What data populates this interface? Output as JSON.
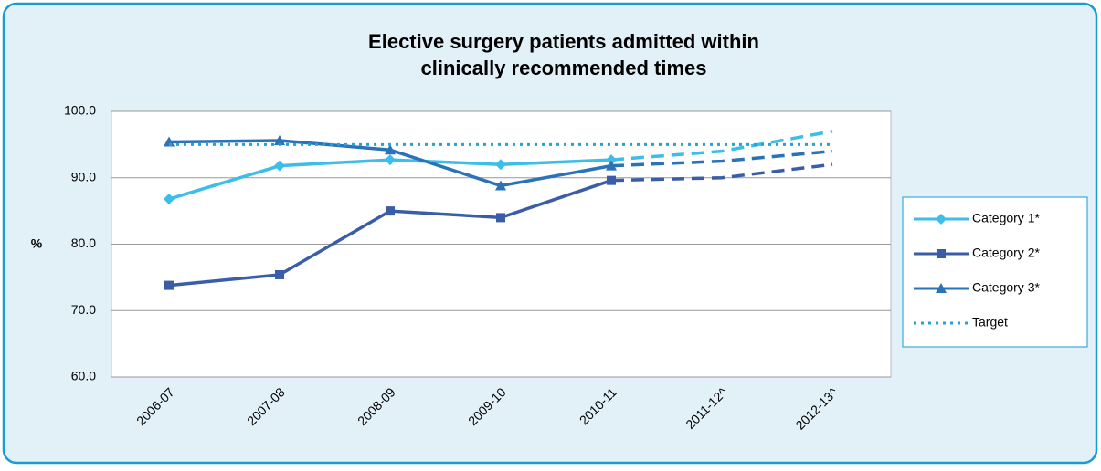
{
  "chart_data": {
    "type": "line",
    "title": [
      "Elective surgery patients admitted within",
      "clinically recommended times"
    ],
    "y_label": "%",
    "categories": [
      "2006-07",
      "2007-08",
      "2008-09",
      "2009-10",
      "2010-11",
      "2011-12^",
      "2012-13^"
    ],
    "projection_from_index": 4,
    "series": [
      {
        "name": "Category 1*",
        "color": "#3dbde9",
        "marker": "diamond",
        "line": "solid",
        "values": [
          86.8,
          91.8,
          92.7,
          92.0,
          92.7,
          94.0,
          97.0
        ]
      },
      {
        "name": "Category 2*",
        "color": "#3a5da8",
        "marker": "square",
        "line": "solid",
        "values": [
          73.8,
          75.4,
          85.0,
          84.0,
          89.6,
          90.0,
          92.0
        ]
      },
      {
        "name": "Category 3*",
        "color": "#2a73b8",
        "marker": "triangle",
        "line": "solid",
        "values": [
          95.4,
          95.6,
          94.2,
          88.8,
          91.8,
          92.5,
          94.0
        ]
      },
      {
        "name": "Target",
        "color": "#1fa3d8",
        "marker": "none",
        "line": "dotted",
        "values": [
          95,
          95,
          95,
          95,
          95,
          95,
          95
        ]
      }
    ],
    "ylim": [
      60,
      100
    ],
    "yticks": [
      {
        "value": 60,
        "label": "60.0"
      },
      {
        "value": 70,
        "label": "70.0"
      },
      {
        "value": 80,
        "label": "80.0"
      },
      {
        "value": 90,
        "label": "90.0"
      },
      {
        "value": 100,
        "label": "100.0"
      }
    ],
    "grid": true,
    "legend": "right"
  }
}
